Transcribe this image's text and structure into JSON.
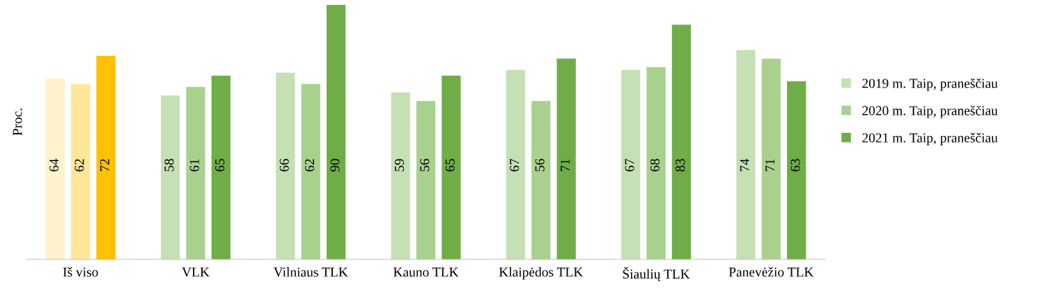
{
  "chart_data": {
    "type": "bar",
    "ylabel": "Proc.",
    "categories": [
      "Iš viso",
      "VLK",
      "Vilniaus TLK",
      "Kauno TLK",
      "Klaipėdos TLK",
      "Šiaulių TLK",
      "Panevėžio TLK"
    ],
    "series": [
      {
        "name": "2019 m. Taip, praneščiau",
        "color": "#c5e0b4",
        "colors": [
          "#fff2cc",
          "#c5e0b4",
          "#c5e0b4",
          "#c5e0b4",
          "#c5e0b4",
          "#c5e0b4",
          "#c5e0b4"
        ],
        "values": [
          64,
          58,
          66,
          59,
          67,
          67,
          74
        ]
      },
      {
        "name": "2020 m. Taip, praneščiau",
        "color": "#a9d18e",
        "colors": [
          "#ffe699",
          "#a9d18e",
          "#a9d18e",
          "#a9d18e",
          "#a9d18e",
          "#a9d18e",
          "#a9d18e"
        ],
        "values": [
          62,
          61,
          62,
          56,
          56,
          68,
          71
        ]
      },
      {
        "name": "2021 m. Taip, praneščiau",
        "color": "#70ad47",
        "colors": [
          "#ffc000",
          "#70ad47",
          "#70ad47",
          "#70ad47",
          "#70ad47",
          "#70ad47",
          "#70ad47"
        ],
        "values": [
          72,
          65,
          90,
          65,
          71,
          83,
          63
        ]
      }
    ],
    "data_labels": true,
    "legend": "right",
    "grid": false,
    "tick_labels": "x"
  }
}
